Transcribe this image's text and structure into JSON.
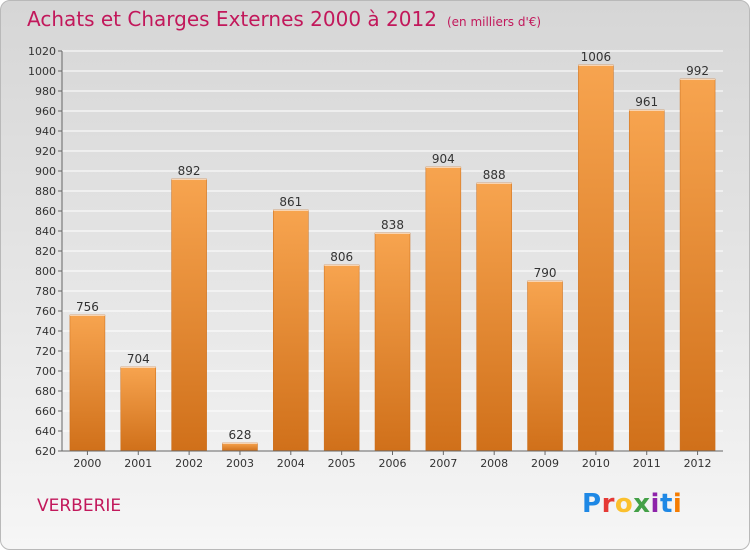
{
  "header": {
    "title": "Achats et Charges Externes 2000 à 2012",
    "unit": "(en milliers d'€)"
  },
  "footer": {
    "commune": "VERBERIE",
    "logo_letters": [
      "P",
      "r",
      "o",
      "x",
      "i",
      "t",
      "i"
    ],
    "logo_colors": [
      "#1e88e5",
      "#e53935",
      "#fbc02d",
      "#43a047",
      "#8e24aa",
      "#1e88e5",
      "#f57c00"
    ]
  },
  "colors": {
    "bar_light": "#f7a44f",
    "bar_dark": "#d0701a",
    "grid": "#ffffff",
    "text": "#333333",
    "title": "#c2185b"
  },
  "chart_data": {
    "type": "bar",
    "title": "Achats et Charges Externes 2000 à 2012",
    "subtitle": "(en milliers d'€)",
    "xlabel": "",
    "ylabel": "",
    "categories": [
      "2000",
      "2001",
      "2002",
      "2003",
      "2004",
      "2005",
      "2006",
      "2007",
      "2008",
      "2009",
      "2010",
      "2011",
      "2012"
    ],
    "values": [
      756,
      704,
      892,
      628,
      861,
      806,
      838,
      904,
      888,
      790,
      1006,
      961,
      992
    ],
    "ylim": [
      620,
      1020
    ],
    "ytick_step": 20,
    "grid": true,
    "data_labels": true
  }
}
